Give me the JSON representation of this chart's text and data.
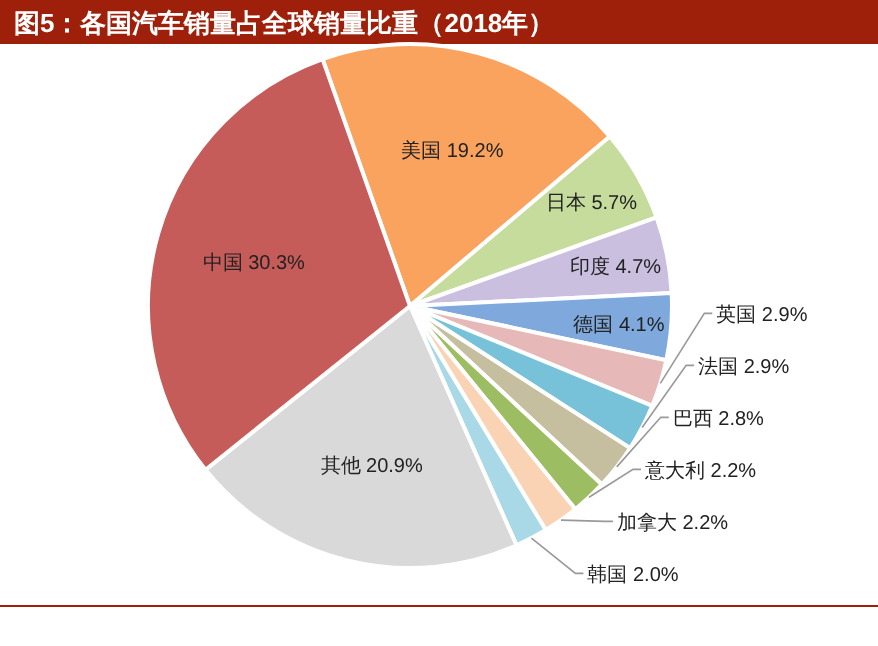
{
  "chart_data": {
    "type": "pie",
    "title": "图5：各国汽车销量占全球销量比重（2018年）",
    "categories": [
      "美国",
      "日本",
      "印度",
      "德国",
      "英国",
      "法国",
      "巴西",
      "意大利",
      "加拿大",
      "韩国",
      "其他",
      "中国"
    ],
    "values": [
      19.2,
      5.7,
      4.7,
      4.1,
      2.9,
      2.9,
      2.8,
      2.2,
      2.2,
      2.0,
      20.9,
      30.3
    ],
    "value_labels": [
      "19.2%",
      "5.7%",
      "4.7%",
      "4.1%",
      "2.9%",
      "2.9%",
      "2.8%",
      "2.2%",
      "2.2%",
      "2.0%",
      "20.9%",
      "30.3%"
    ],
    "colors": [
      "#f9a35f",
      "#c6dc9c",
      "#cbbfe0",
      "#7fa9dc",
      "#e6b8b8",
      "#77c2d8",
      "#c6bf9f",
      "#9dbd62",
      "#f9d3b4",
      "#a9d9e6",
      "#d9d9d9",
      "#c65c5a"
    ]
  }
}
